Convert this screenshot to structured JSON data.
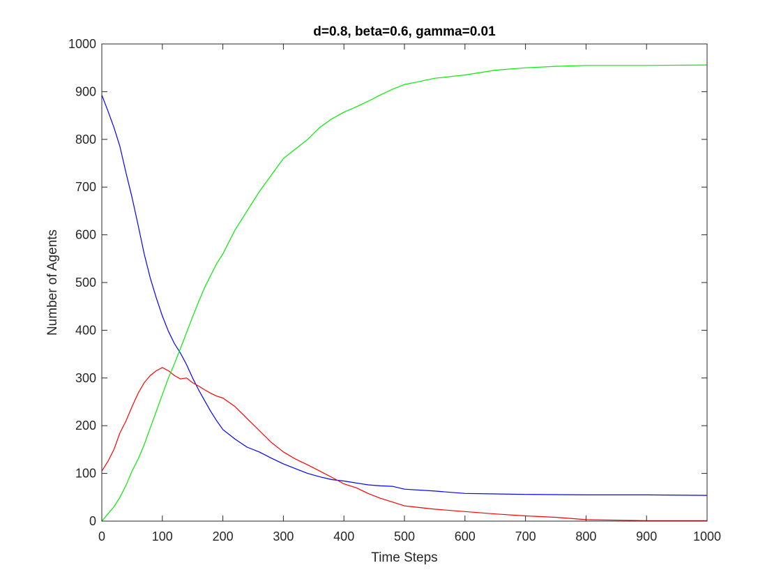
{
  "chart_data": {
    "type": "line",
    "title": "d=0.8, beta=0.6, gamma=0.01",
    "xlabel": "Time Steps",
    "ylabel": "Number of Agents",
    "xlim": [
      0,
      1000
    ],
    "ylim": [
      0,
      1000
    ],
    "xticks": [
      0,
      100,
      200,
      300,
      400,
      500,
      600,
      700,
      800,
      900,
      1000
    ],
    "yticks": [
      0,
      100,
      200,
      300,
      400,
      500,
      600,
      700,
      800,
      900,
      1000
    ],
    "grid": false,
    "legend": "none",
    "series": [
      {
        "color": "#0000ff",
        "x": [
          0,
          10,
          20,
          30,
          40,
          50,
          60,
          70,
          80,
          90,
          100,
          110,
          120,
          130,
          140,
          150,
          160,
          170,
          180,
          190,
          200,
          220,
          240,
          260,
          280,
          300,
          320,
          340,
          360,
          380,
          400,
          420,
          440,
          460,
          480,
          500,
          550,
          600,
          650,
          700,
          800,
          900,
          1000
        ],
        "y": [
          893,
          860,
          825,
          785,
          730,
          678,
          620,
          560,
          510,
          468,
          430,
          398,
          372,
          352,
          328,
          300,
          275,
          252,
          230,
          210,
          192,
          172,
          155,
          145,
          132,
          120,
          110,
          100,
          93,
          87,
          84,
          80,
          76,
          74,
          73,
          67,
          63,
          58,
          57,
          56,
          55,
          55,
          54
        ]
      },
      {
        "color": "#ff0000",
        "x": [
          0,
          10,
          20,
          30,
          40,
          50,
          60,
          70,
          80,
          90,
          100,
          110,
          120,
          130,
          140,
          150,
          160,
          170,
          180,
          190,
          200,
          220,
          240,
          260,
          280,
          300,
          320,
          340,
          360,
          380,
          400,
          420,
          440,
          460,
          480,
          500,
          550,
          600,
          650,
          700,
          750,
          800,
          900,
          1000
        ],
        "y": [
          105,
          125,
          150,
          185,
          210,
          240,
          268,
          290,
          305,
          315,
          322,
          315,
          305,
          298,
          300,
          290,
          283,
          275,
          268,
          262,
          258,
          240,
          215,
          190,
          165,
          145,
          130,
          118,
          105,
          92,
          78,
          70,
          58,
          48,
          40,
          32,
          25,
          20,
          15,
          11,
          8,
          3,
          1,
          1
        ]
      },
      {
        "color": "#00ee00",
        "x": [
          0,
          10,
          20,
          30,
          40,
          50,
          60,
          70,
          80,
          90,
          100,
          110,
          120,
          130,
          140,
          150,
          160,
          170,
          180,
          190,
          200,
          220,
          240,
          260,
          280,
          300,
          320,
          340,
          360,
          380,
          400,
          420,
          440,
          460,
          480,
          500,
          520,
          550,
          600,
          650,
          700,
          750,
          800,
          900,
          1000
        ],
        "y": [
          0,
          15,
          30,
          50,
          75,
          105,
          130,
          160,
          195,
          230,
          265,
          300,
          330,
          362,
          395,
          428,
          460,
          490,
          515,
          540,
          560,
          610,
          650,
          690,
          725,
          760,
          780,
          800,
          825,
          843,
          857,
          868,
          880,
          893,
          905,
          915,
          920,
          928,
          935,
          945,
          950,
          953,
          955,
          955,
          956
        ]
      }
    ]
  }
}
